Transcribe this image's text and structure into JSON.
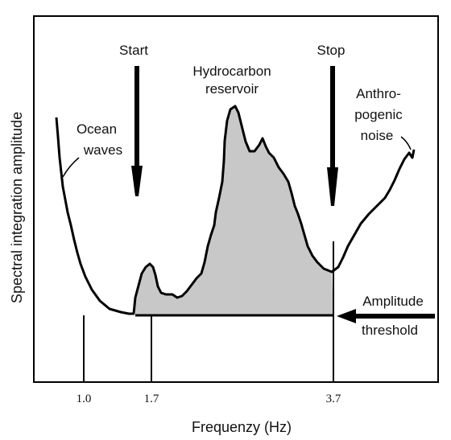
{
  "figure": {
    "ylabel": "Spectral integration amplitude",
    "xlabel": "Frequenzy (Hz)",
    "ticks": [
      "1.0",
      "1.7",
      "3.7"
    ],
    "labels": {
      "start": "Start",
      "stop": "Stop",
      "reservoir_line1": "Hydrocarbon",
      "reservoir_line2": "reservoir",
      "ocean_line1": "Ocean",
      "ocean_line2": "waves",
      "anthro_line1": "Anthro-",
      "anthro_line2": "pogenic",
      "anthro_line3": "noise",
      "threshold_line1": "Amplitude",
      "threshold_line2": "threshold"
    },
    "colors": {
      "ink": "#000000",
      "fill": "#c8c8c8",
      "background": "#ffffff"
    }
  }
}
